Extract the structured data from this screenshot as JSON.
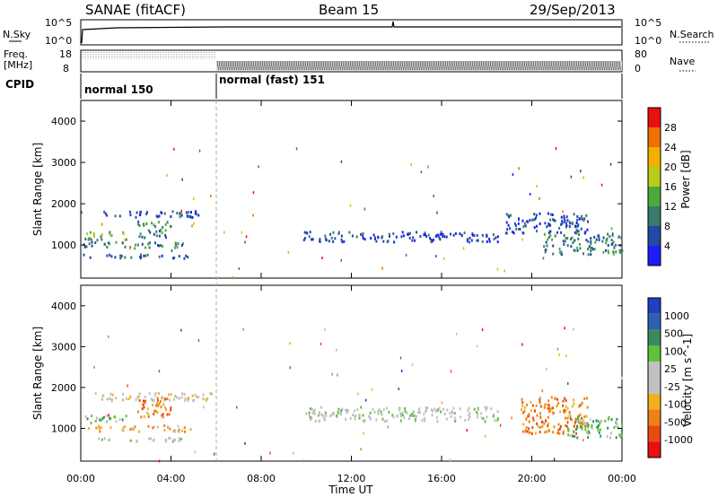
{
  "header": {
    "station": "SANAE (fitACF)",
    "beam": "Beam 15",
    "date": "29/Sep/2013"
  },
  "noise_panel": {
    "left_label": "N.Sky",
    "right_label": "N.Search",
    "yticks_left": [
      "10^5",
      "10^0"
    ],
    "yticks_right": [
      "10^5",
      "10^0"
    ]
  },
  "freq_panel": {
    "left_label_1": "Freq.",
    "left_label_2": "[MHz]",
    "yticks_left": [
      "18",
      "8"
    ],
    "right_label": "Nave",
    "yticks_right": [
      "80",
      "0"
    ]
  },
  "cpid_panel": {
    "label": "CPID",
    "segments": [
      {
        "name": "normal 150",
        "start": "00:00",
        "end": "06:00"
      },
      {
        "name": "normal (fast) 151",
        "start": "06:00",
        "end": "24:00"
      }
    ]
  },
  "colors": {
    "power_scale": [
      "#1c1cff",
      "#2248a8",
      "#3a7a6a",
      "#4caa3c",
      "#b8cc18",
      "#f0b000",
      "#f07000",
      "#e81010"
    ],
    "velocity_scale": [
      "#2040c0",
      "#2c62b0",
      "#3a8a60",
      "#5ec23a",
      "#c0c0c0",
      "#c0c0c0",
      "#f0b020",
      "#f08018",
      "#e84a10",
      "#e81010"
    ]
  },
  "chart_data": [
    {
      "type": "heatmap",
      "panel": "power",
      "ylabel": "Slant Range [km]",
      "yticks": [
        1000,
        2000,
        3000,
        4000
      ],
      "ylim": [
        200,
        4500
      ],
      "xlim_hours": [
        0,
        24
      ],
      "colorbar_label": "Power [dB]",
      "colorbar_ticks": [
        "4",
        "8",
        "12",
        "16",
        "20",
        "24",
        "28"
      ],
      "regions": [
        {
          "t0": 0.1,
          "t1": 5.0,
          "r0": 700,
          "r1": 800,
          "level": 1
        },
        {
          "t0": 0.1,
          "t1": 4.7,
          "r0": 950,
          "r1": 1100,
          "level": 2
        },
        {
          "t0": 0.1,
          "t1": 2.0,
          "r0": 1150,
          "r1": 1350,
          "level": 3
        },
        {
          "t0": 0.5,
          "t1": 5.3,
          "r0": 1700,
          "r1": 1850,
          "level": 1
        },
        {
          "t0": 2.5,
          "t1": 4.0,
          "r0": 1200,
          "r1": 1600,
          "level": 2
        },
        {
          "t0": 9.8,
          "t1": 18.5,
          "r0": 1100,
          "r1": 1350,
          "level": 1
        },
        {
          "t0": 18.8,
          "t1": 22.5,
          "r0": 1300,
          "r1": 1800,
          "level": 1
        },
        {
          "t0": 20.5,
          "t1": 24.0,
          "r0": 800,
          "r1": 1300,
          "level": 2
        }
      ]
    },
    {
      "type": "heatmap",
      "panel": "velocity",
      "ylabel": "Slant Range [km]",
      "yticks": [
        1000,
        2000,
        3000,
        4000
      ],
      "ylim": [
        200,
        4500
      ],
      "xlim_hours": [
        0,
        24
      ],
      "colorbar_label": "Velocity [m s^-1]",
      "colorbar_ticks": [
        "1000",
        "500",
        "100",
        "25",
        "-25",
        "-100",
        "-500",
        "-1000"
      ],
      "regions": [
        {
          "t0": 0.3,
          "t1": 4.5,
          "r0": 700,
          "r1": 800,
          "level": 4
        },
        {
          "t0": 0.3,
          "t1": 5.0,
          "r0": 950,
          "r1": 1100,
          "level": 6
        },
        {
          "t0": 0.1,
          "t1": 2.0,
          "r0": 1150,
          "r1": 1350,
          "level": 3
        },
        {
          "t0": 0.5,
          "t1": 6.0,
          "r0": 1700,
          "r1": 1900,
          "level": 5
        },
        {
          "t0": 2.5,
          "t1": 4.0,
          "r0": 1300,
          "r1": 1800,
          "level": 7
        },
        {
          "t0": 9.8,
          "t1": 18.5,
          "r0": 1200,
          "r1": 1550,
          "level": 4
        },
        {
          "t0": 19.5,
          "t1": 22.5,
          "r0": 900,
          "r1": 1800,
          "level": 7
        },
        {
          "t0": 21.5,
          "t1": 24.0,
          "r0": 800,
          "r1": 1300,
          "level": 3
        }
      ]
    }
  ],
  "xaxis": {
    "ticks": [
      "00:00",
      "04:00",
      "08:00",
      "12:00",
      "16:00",
      "20:00",
      "00:00"
    ],
    "label": "Time UT"
  }
}
